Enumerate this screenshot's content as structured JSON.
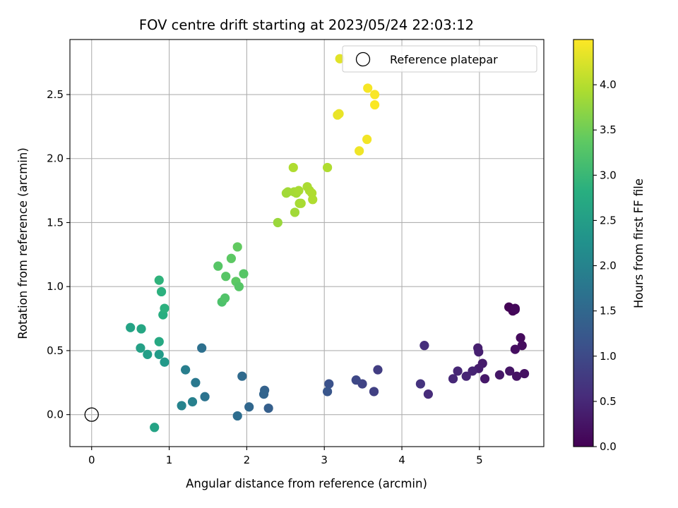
{
  "chart_data": {
    "type": "scatter",
    "title": "FOV centre drift starting at 2023/05/24 22:03:12",
    "xlabel": "Angular distance from reference (arcmin)",
    "ylabel": "Rotation from reference (arcmin)",
    "xlim": [
      -0.28,
      5.83
    ],
    "ylim": [
      -0.25,
      2.93
    ],
    "xticks": [
      0,
      1,
      2,
      3,
      4,
      5
    ],
    "yticks": [
      0.0,
      0.5,
      1.0,
      1.5,
      2.0,
      2.5
    ],
    "xtick_labels": [
      "0",
      "1",
      "2",
      "3",
      "4",
      "5"
    ],
    "ytick_labels": [
      "0.0",
      "0.5",
      "1.0",
      "1.5",
      "2.0",
      "2.5"
    ],
    "grid": true,
    "legend": {
      "placement": "top-right",
      "label": "Reference platepar",
      "marker": "open-circle"
    },
    "reference_point": {
      "x": 0,
      "y": 0
    },
    "colorbar": {
      "label": "Hours from first FF file",
      "colormap": "viridis",
      "min": 0.0,
      "max": 4.5,
      "ticks": [
        0.0,
        0.5,
        1.0,
        1.5,
        2.0,
        2.5,
        3.0,
        3.5,
        4.0
      ],
      "tick_labels": [
        "0.0",
        "0.5",
        "1.0",
        "1.5",
        "2.0",
        "2.5",
        "3.0",
        "3.5",
        "4.0"
      ]
    },
    "points": [
      {
        "x": 5.38,
        "y": 0.84,
        "c": 0.03
      },
      {
        "x": 5.43,
        "y": 0.81,
        "c": 0.05
      },
      {
        "x": 5.46,
        "y": 0.82,
        "c": 0.07
      },
      {
        "x": 5.46,
        "y": 0.83,
        "c": 0.09
      },
      {
        "x": 5.53,
        "y": 0.6,
        "c": 0.12
      },
      {
        "x": 5.55,
        "y": 0.54,
        "c": 0.15
      },
      {
        "x": 5.46,
        "y": 0.51,
        "c": 0.17
      },
      {
        "x": 5.58,
        "y": 0.32,
        "c": 0.2
      },
      {
        "x": 5.48,
        "y": 0.3,
        "c": 0.22
      },
      {
        "x": 5.39,
        "y": 0.34,
        "c": 0.25
      },
      {
        "x": 5.26,
        "y": 0.31,
        "c": 0.28
      },
      {
        "x": 5.07,
        "y": 0.28,
        "c": 0.3
      },
      {
        "x": 5.04,
        "y": 0.4,
        "c": 0.33
      },
      {
        "x": 4.99,
        "y": 0.36,
        "c": 0.36
      },
      {
        "x": 4.98,
        "y": 0.52,
        "c": 0.38
      },
      {
        "x": 4.99,
        "y": 0.49,
        "c": 0.4
      },
      {
        "x": 4.91,
        "y": 0.34,
        "c": 0.43
      },
      {
        "x": 4.83,
        "y": 0.3,
        "c": 0.46
      },
      {
        "x": 4.72,
        "y": 0.34,
        "c": 0.48
      },
      {
        "x": 4.66,
        "y": 0.28,
        "c": 0.5
      },
      {
        "x": 4.34,
        "y": 0.16,
        "c": 0.55
      },
      {
        "x": 4.29,
        "y": 0.54,
        "c": 0.6
      },
      {
        "x": 4.24,
        "y": 0.24,
        "c": 0.66
      },
      {
        "x": 3.69,
        "y": 0.35,
        "c": 0.8
      },
      {
        "x": 3.64,
        "y": 0.18,
        "c": 0.85
      },
      {
        "x": 3.49,
        "y": 0.24,
        "c": 0.9
      },
      {
        "x": 3.41,
        "y": 0.27,
        "c": 0.97
      },
      {
        "x": 3.06,
        "y": 0.24,
        "c": 1.12
      },
      {
        "x": 3.04,
        "y": 0.18,
        "c": 1.2
      },
      {
        "x": 2.28,
        "y": 0.05,
        "c": 1.35
      },
      {
        "x": 2.23,
        "y": 0.19,
        "c": 1.4
      },
      {
        "x": 2.22,
        "y": 0.16,
        "c": 1.45
      },
      {
        "x": 2.03,
        "y": 0.06,
        "c": 1.5
      },
      {
        "x": 1.94,
        "y": 0.3,
        "c": 1.55
      },
      {
        "x": 1.88,
        "y": -0.01,
        "c": 1.6
      },
      {
        "x": 1.42,
        "y": 0.52,
        "c": 1.65
      },
      {
        "x": 1.46,
        "y": 0.14,
        "c": 1.7
      },
      {
        "x": 1.34,
        "y": 0.25,
        "c": 1.8
      },
      {
        "x": 1.21,
        "y": 0.35,
        "c": 1.9
      },
      {
        "x": 1.3,
        "y": 0.1,
        "c": 1.95
      },
      {
        "x": 1.16,
        "y": 0.07,
        "c": 2.0
      },
      {
        "x": 0.94,
        "y": 0.41,
        "c": 2.4
      },
      {
        "x": 0.87,
        "y": 0.47,
        "c": 2.45
      },
      {
        "x": 0.72,
        "y": 0.47,
        "c": 2.5
      },
      {
        "x": 0.63,
        "y": 0.52,
        "c": 2.55
      },
      {
        "x": 0.5,
        "y": 0.68,
        "c": 2.6
      },
      {
        "x": 0.64,
        "y": 0.67,
        "c": 2.65
      },
      {
        "x": 0.87,
        "y": 0.57,
        "c": 2.7
      },
      {
        "x": 0.81,
        "y": -0.1,
        "c": 2.6
      },
      {
        "x": 0.92,
        "y": 0.78,
        "c": 2.8
      },
      {
        "x": 0.94,
        "y": 0.83,
        "c": 2.85
      },
      {
        "x": 0.9,
        "y": 0.96,
        "c": 2.85
      },
      {
        "x": 0.87,
        "y": 1.05,
        "c": 2.9
      },
      {
        "x": 1.68,
        "y": 0.88,
        "c": 3.2
      },
      {
        "x": 1.72,
        "y": 0.91,
        "c": 3.25
      },
      {
        "x": 1.73,
        "y": 1.08,
        "c": 3.3
      },
      {
        "x": 1.63,
        "y": 1.16,
        "c": 3.3
      },
      {
        "x": 1.8,
        "y": 1.22,
        "c": 3.35
      },
      {
        "x": 1.86,
        "y": 1.04,
        "c": 3.35
      },
      {
        "x": 1.9,
        "y": 1.0,
        "c": 3.3
      },
      {
        "x": 1.88,
        "y": 1.31,
        "c": 3.4
      },
      {
        "x": 1.96,
        "y": 1.1,
        "c": 3.3
      },
      {
        "x": 2.4,
        "y": 1.5,
        "c": 3.8
      },
      {
        "x": 2.51,
        "y": 1.73,
        "c": 3.85
      },
      {
        "x": 2.53,
        "y": 1.74,
        "c": 3.85
      },
      {
        "x": 2.61,
        "y": 1.74,
        "c": 3.88
      },
      {
        "x": 2.64,
        "y": 1.73,
        "c": 3.88
      },
      {
        "x": 2.67,
        "y": 1.75,
        "c": 3.9
      },
      {
        "x": 2.62,
        "y": 1.58,
        "c": 3.85
      },
      {
        "x": 2.68,
        "y": 1.65,
        "c": 3.88
      },
      {
        "x": 2.7,
        "y": 1.65,
        "c": 3.9
      },
      {
        "x": 2.78,
        "y": 1.78,
        "c": 3.92
      },
      {
        "x": 2.81,
        "y": 1.75,
        "c": 3.92
      },
      {
        "x": 2.84,
        "y": 1.73,
        "c": 3.95
      },
      {
        "x": 2.85,
        "y": 1.68,
        "c": 3.95
      },
      {
        "x": 2.6,
        "y": 1.93,
        "c": 3.95
      },
      {
        "x": 3.04,
        "y": 1.93,
        "c": 3.95
      },
      {
        "x": 3.45,
        "y": 2.06,
        "c": 4.4
      },
      {
        "x": 3.55,
        "y": 2.15,
        "c": 4.42
      },
      {
        "x": 3.17,
        "y": 2.34,
        "c": 4.35
      },
      {
        "x": 3.19,
        "y": 2.35,
        "c": 4.36
      },
      {
        "x": 3.2,
        "y": 2.78,
        "c": 4.3
      },
      {
        "x": 3.56,
        "y": 2.55,
        "c": 4.45
      },
      {
        "x": 3.65,
        "y": 2.5,
        "c": 4.47
      },
      {
        "x": 3.65,
        "y": 2.42,
        "c": 4.48
      }
    ]
  }
}
